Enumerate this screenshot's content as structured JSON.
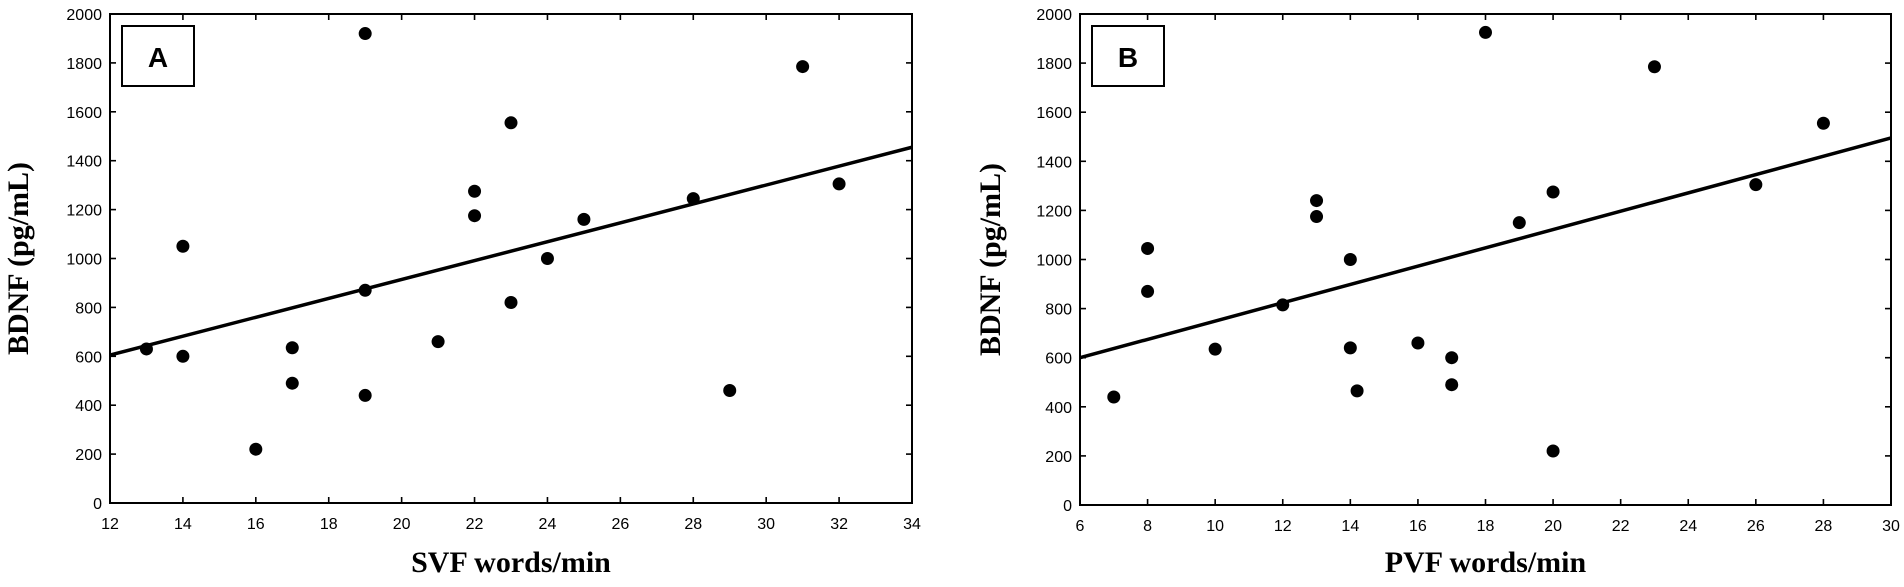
{
  "chart_data": [
    {
      "type": "scatter",
      "panel_label": "A",
      "xlabel": "SVF words/min",
      "ylabel": "BDNF (pg/mL)",
      "xlim": [
        12,
        34
      ],
      "ylim": [
        0,
        2000
      ],
      "xticks": [
        12,
        14,
        16,
        18,
        20,
        22,
        24,
        26,
        28,
        30,
        32,
        34
      ],
      "yticks": [
        0,
        200,
        400,
        600,
        800,
        1000,
        1200,
        1400,
        1600,
        1800,
        2000
      ],
      "grid": false,
      "points": [
        {
          "x": 13,
          "y": 630
        },
        {
          "x": 14,
          "y": 1050
        },
        {
          "x": 14,
          "y": 600
        },
        {
          "x": 16,
          "y": 220
        },
        {
          "x": 17,
          "y": 635
        },
        {
          "x": 17,
          "y": 490
        },
        {
          "x": 19,
          "y": 1920
        },
        {
          "x": 19,
          "y": 870
        },
        {
          "x": 19,
          "y": 440
        },
        {
          "x": 21,
          "y": 660
        },
        {
          "x": 22,
          "y": 1275
        },
        {
          "x": 22,
          "y": 1175
        },
        {
          "x": 23,
          "y": 1555
        },
        {
          "x": 23,
          "y": 820
        },
        {
          "x": 24,
          "y": 1000
        },
        {
          "x": 25,
          "y": 1160
        },
        {
          "x": 28,
          "y": 1245
        },
        {
          "x": 29,
          "y": 460
        },
        {
          "x": 31,
          "y": 1785
        },
        {
          "x": 32,
          "y": 1305
        }
      ],
      "fit_line": {
        "x": [
          12,
          34
        ],
        "y": [
          605,
          1455
        ]
      }
    },
    {
      "type": "scatter",
      "panel_label": "B",
      "xlabel": "PVF words/min",
      "ylabel": "BDNF (pg/mL)",
      "xlim": [
        6,
        30
      ],
      "ylim": [
        0,
        2000
      ],
      "xticks": [
        6,
        8,
        10,
        12,
        14,
        16,
        18,
        20,
        22,
        24,
        26,
        28,
        30
      ],
      "yticks": [
        0,
        200,
        400,
        600,
        800,
        1000,
        1200,
        1400,
        1600,
        1800,
        2000
      ],
      "grid": false,
      "points": [
        {
          "x": 7,
          "y": 440
        },
        {
          "x": 8,
          "y": 1045
        },
        {
          "x": 8,
          "y": 870
        },
        {
          "x": 10,
          "y": 635
        },
        {
          "x": 12,
          "y": 815
        },
        {
          "x": 13,
          "y": 1240
        },
        {
          "x": 13,
          "y": 1175
        },
        {
          "x": 14,
          "y": 1000
        },
        {
          "x": 14,
          "y": 640
        },
        {
          "x": 14.2,
          "y": 465
        },
        {
          "x": 16,
          "y": 660
        },
        {
          "x": 17,
          "y": 600
        },
        {
          "x": 17,
          "y": 490
        },
        {
          "x": 18,
          "y": 1925
        },
        {
          "x": 19,
          "y": 1150
        },
        {
          "x": 20,
          "y": 1275
        },
        {
          "x": 20,
          "y": 220
        },
        {
          "x": 23,
          "y": 1785
        },
        {
          "x": 26,
          "y": 1305
        },
        {
          "x": 28,
          "y": 1555
        }
      ],
      "fit_line": {
        "x": [
          6,
          30
        ],
        "y": [
          600,
          1495
        ]
      }
    }
  ]
}
